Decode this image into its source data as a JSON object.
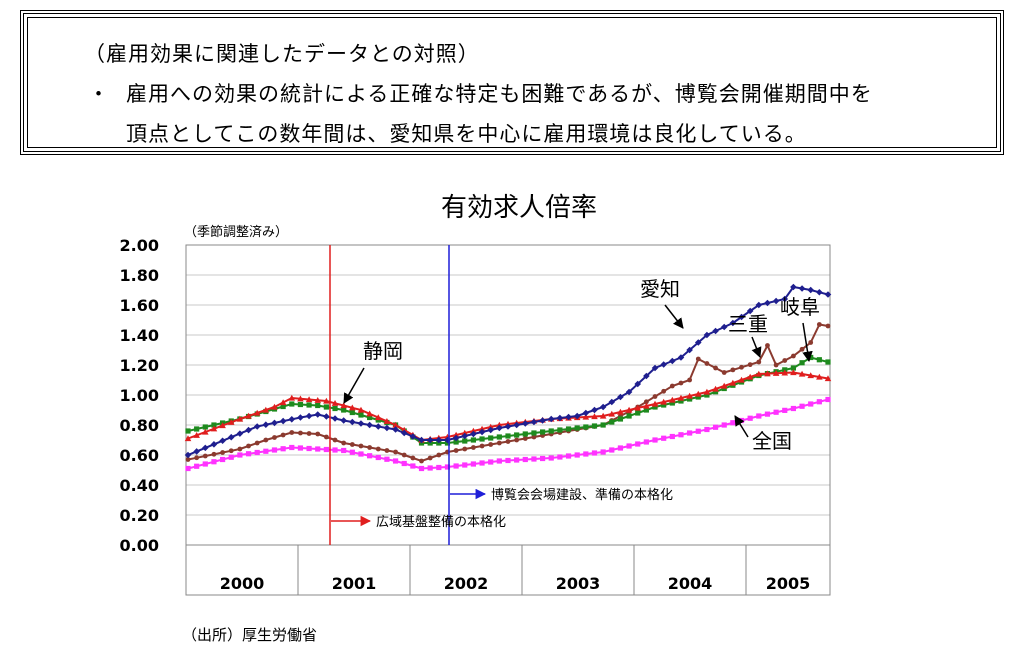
{
  "note": {
    "heading": "（雇用効果に関連したデータとの対照）",
    "bullet": "・",
    "line1": "雇用への効果の統計による正確な特定も困難であるが、博覧会開催期間中を",
    "line2": "頂点としてこの数年間は、愛知県を中心に雇用環境は良化している。"
  },
  "source_note": "（出所）厚生労働省",
  "chart_data": {
    "type": "line",
    "title": "有効求人倍率",
    "subtitle": "（季節調整済み）",
    "ylim": [
      0,
      2.0
    ],
    "y_ticks": [
      "2.00",
      "1.80",
      "1.60",
      "1.40",
      "1.20",
      "1.00",
      "0.80",
      "0.60",
      "0.40",
      "0.20",
      "0.00"
    ],
    "x_year_labels": [
      "2000",
      "2001",
      "2002",
      "2003",
      "2004",
      "2005"
    ],
    "x_range_months": [
      0,
      71
    ],
    "grid": true,
    "series": [
      {
        "name": "愛知",
        "color": "#1f1f8f",
        "marker": "diamond",
        "keyframes": [
          [
            0,
            0.6
          ],
          [
            8,
            0.79
          ],
          [
            13,
            0.85
          ],
          [
            15,
            0.87
          ],
          [
            18,
            0.83
          ],
          [
            24,
            0.77
          ],
          [
            27,
            0.7
          ],
          [
            30,
            0.7
          ],
          [
            36,
            0.78
          ],
          [
            42,
            0.84
          ],
          [
            45,
            0.86
          ],
          [
            48,
            0.92
          ],
          [
            51,
            1.02
          ],
          [
            54,
            1.18
          ],
          [
            57,
            1.25
          ],
          [
            60,
            1.4
          ],
          [
            63,
            1.48
          ],
          [
            66,
            1.6
          ],
          [
            69,
            1.64
          ],
          [
            70,
            1.72
          ],
          [
            72,
            1.7
          ],
          [
            74,
            1.67
          ]
        ]
      },
      {
        "name": "三重",
        "color": "#8b3a2f",
        "marker": "circle",
        "keyframes": [
          [
            0,
            0.57
          ],
          [
            6,
            0.64
          ],
          [
            9,
            0.7
          ],
          [
            12,
            0.75
          ],
          [
            15,
            0.74
          ],
          [
            18,
            0.68
          ],
          [
            24,
            0.62
          ],
          [
            27,
            0.56
          ],
          [
            30,
            0.62
          ],
          [
            36,
            0.68
          ],
          [
            42,
            0.74
          ],
          [
            48,
            0.8
          ],
          [
            52,
            0.92
          ],
          [
            56,
            1.06
          ],
          [
            58,
            1.1
          ],
          [
            59,
            1.24
          ],
          [
            62,
            1.15
          ],
          [
            66,
            1.22
          ],
          [
            67,
            1.33
          ],
          [
            68,
            1.2
          ],
          [
            70,
            1.26
          ],
          [
            72,
            1.35
          ],
          [
            73,
            1.47
          ],
          [
            74,
            1.46
          ]
        ]
      },
      {
        "name": "岐阜",
        "color": "#1e8a1e",
        "marker": "square",
        "keyframes": [
          [
            0,
            0.76
          ],
          [
            6,
            0.84
          ],
          [
            12,
            0.94
          ],
          [
            15,
            0.93
          ],
          [
            18,
            0.9
          ],
          [
            24,
            0.8
          ],
          [
            27,
            0.68
          ],
          [
            30,
            0.68
          ],
          [
            36,
            0.72
          ],
          [
            42,
            0.76
          ],
          [
            48,
            0.8
          ],
          [
            54,
            0.92
          ],
          [
            60,
            1.0
          ],
          [
            66,
            1.13
          ],
          [
            70,
            1.18
          ],
          [
            72,
            1.25
          ],
          [
            74,
            1.22
          ]
        ]
      },
      {
        "name": "静岡",
        "color": "#e01e1e",
        "marker": "triangle",
        "keyframes": [
          [
            0,
            0.71
          ],
          [
            6,
            0.84
          ],
          [
            10,
            0.92
          ],
          [
            12,
            0.98
          ],
          [
            16,
            0.96
          ],
          [
            20,
            0.9
          ],
          [
            24,
            0.8
          ],
          [
            27,
            0.7
          ],
          [
            30,
            0.72
          ],
          [
            36,
            0.8
          ],
          [
            42,
            0.84
          ],
          [
            48,
            0.86
          ],
          [
            54,
            0.94
          ],
          [
            60,
            1.02
          ],
          [
            66,
            1.14
          ],
          [
            70,
            1.15
          ],
          [
            72,
            1.13
          ],
          [
            74,
            1.11
          ]
        ]
      },
      {
        "name": "全国",
        "color": "#ff33ff",
        "marker": "square",
        "keyframes": [
          [
            0,
            0.51
          ],
          [
            6,
            0.6
          ],
          [
            12,
            0.65
          ],
          [
            18,
            0.63
          ],
          [
            24,
            0.56
          ],
          [
            27,
            0.51
          ],
          [
            30,
            0.52
          ],
          [
            36,
            0.56
          ],
          [
            42,
            0.58
          ],
          [
            48,
            0.62
          ],
          [
            54,
            0.7
          ],
          [
            60,
            0.77
          ],
          [
            66,
            0.86
          ],
          [
            70,
            0.91
          ],
          [
            72,
            0.94
          ],
          [
            74,
            0.97
          ]
        ]
      }
    ],
    "annotations": {
      "event1_label": "広域基盤整備の本格化",
      "event1_color": "#e01e1e",
      "event2_label": "博覧会会場建設、準備の本格化",
      "event2_color": "#1f1fd8"
    }
  }
}
